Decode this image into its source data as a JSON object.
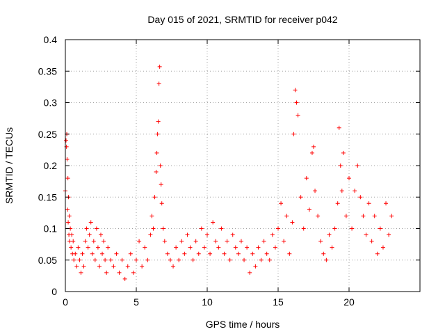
{
  "chart_data": {
    "type": "scatter",
    "title": "Day 015 of 2021, SRMTID for receiver p042",
    "xlabel": "GPS time / hours",
    "ylabel": "SRMTID / TECUs",
    "xlim": [
      0,
      25
    ],
    "ylim": [
      0,
      0.4
    ],
    "x_ticks": [
      0,
      5,
      10,
      15,
      20
    ],
    "y_ticks": [
      0,
      0.05,
      0.1,
      0.15,
      0.2,
      0.25,
      0.3,
      0.35,
      0.4
    ],
    "x_tick_labels": [
      "0",
      "5",
      "10",
      "15",
      "20"
    ],
    "y_tick_labels": [
      "0",
      "0.05",
      "0.1",
      "0.15",
      "0.2",
      "0.25",
      "0.3",
      "0.35",
      "0.4"
    ],
    "grid": true,
    "marker": "+",
    "color": "#ff0000",
    "series": [
      {
        "name": "SRMTID",
        "x": [
          0.0,
          0.05,
          0.08,
          0.1,
          0.12,
          0.15,
          0.18,
          0.2,
          0.22,
          0.25,
          0.28,
          0.3,
          0.35,
          0.4,
          0.45,
          0.5,
          0.55,
          0.6,
          0.7,
          0.8,
          0.9,
          1.0,
          1.1,
          1.2,
          1.3,
          1.4,
          1.5,
          1.6,
          1.7,
          1.8,
          1.9,
          2.0,
          2.1,
          2.2,
          2.3,
          2.4,
          2.5,
          2.6,
          2.7,
          2.8,
          2.9,
          3.0,
          3.2,
          3.4,
          3.6,
          3.8,
          4.0,
          4.2,
          4.4,
          4.6,
          4.8,
          5.0,
          5.2,
          5.4,
          5.6,
          5.8,
          6.0,
          6.1,
          6.2,
          6.3,
          6.4,
          6.45,
          6.5,
          6.55,
          6.6,
          6.65,
          6.7,
          6.75,
          6.8,
          6.9,
          7.0,
          7.2,
          7.4,
          7.6,
          7.8,
          8.0,
          8.2,
          8.4,
          8.6,
          8.8,
          9.0,
          9.2,
          9.4,
          9.6,
          9.8,
          10.0,
          10.2,
          10.4,
          10.6,
          10.8,
          11.0,
          11.2,
          11.4,
          11.6,
          11.8,
          12.0,
          12.2,
          12.4,
          12.6,
          12.8,
          13.0,
          13.2,
          13.4,
          13.6,
          13.8,
          14.0,
          14.2,
          14.4,
          14.6,
          14.8,
          15.0,
          15.2,
          15.4,
          15.6,
          15.8,
          16.0,
          16.1,
          16.2,
          16.3,
          16.4,
          16.6,
          16.8,
          17.0,
          17.2,
          17.4,
          17.5,
          17.6,
          17.8,
          18.0,
          18.2,
          18.4,
          18.6,
          18.8,
          19.0,
          19.2,
          19.3,
          19.4,
          19.5,
          19.6,
          19.8,
          20.0,
          20.2,
          20.4,
          20.6,
          20.8,
          21.0,
          21.2,
          21.4,
          21.6,
          21.8,
          22.0,
          22.2,
          22.4,
          22.6,
          22.8,
          23.0
        ],
        "y": [
          0.16,
          0.24,
          0.23,
          0.25,
          0.21,
          0.13,
          0.18,
          0.11,
          0.15,
          0.09,
          0.12,
          0.08,
          0.1,
          0.07,
          0.09,
          0.06,
          0.08,
          0.05,
          0.06,
          0.04,
          0.07,
          0.05,
          0.03,
          0.06,
          0.04,
          0.08,
          0.1,
          0.07,
          0.09,
          0.11,
          0.06,
          0.08,
          0.05,
          0.1,
          0.07,
          0.04,
          0.09,
          0.06,
          0.08,
          0.05,
          0.03,
          0.07,
          0.05,
          0.04,
          0.06,
          0.03,
          0.05,
          0.02,
          0.04,
          0.06,
          0.03,
          0.05,
          0.08,
          0.04,
          0.07,
          0.05,
          0.09,
          0.12,
          0.1,
          0.15,
          0.19,
          0.22,
          0.25,
          0.27,
          0.33,
          0.357,
          0.2,
          0.17,
          0.14,
          0.1,
          0.08,
          0.06,
          0.05,
          0.04,
          0.07,
          0.05,
          0.08,
          0.06,
          0.09,
          0.07,
          0.05,
          0.08,
          0.06,
          0.1,
          0.07,
          0.09,
          0.06,
          0.11,
          0.08,
          0.07,
          0.1,
          0.06,
          0.08,
          0.05,
          0.09,
          0.07,
          0.06,
          0.08,
          0.05,
          0.07,
          0.03,
          0.06,
          0.04,
          0.07,
          0.05,
          0.08,
          0.06,
          0.05,
          0.09,
          0.07,
          0.1,
          0.14,
          0.08,
          0.12,
          0.06,
          0.11,
          0.25,
          0.32,
          0.3,
          0.28,
          0.15,
          0.1,
          0.18,
          0.13,
          0.22,
          0.23,
          0.16,
          0.12,
          0.08,
          0.06,
          0.05,
          0.09,
          0.07,
          0.1,
          0.14,
          0.26,
          0.2,
          0.16,
          0.22,
          0.12,
          0.18,
          0.1,
          0.16,
          0.2,
          0.15,
          0.12,
          0.09,
          0.14,
          0.08,
          0.12,
          0.06,
          0.1,
          0.07,
          0.14,
          0.09,
          0.12
        ]
      }
    ]
  }
}
